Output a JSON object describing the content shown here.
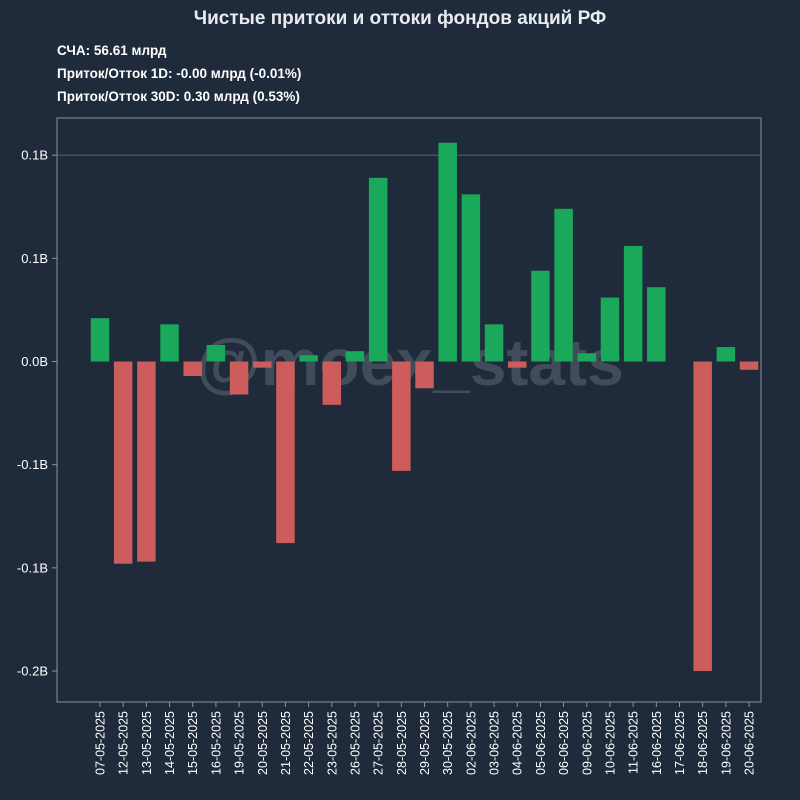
{
  "chart_data": {
    "type": "bar",
    "title": "Чистые притоки и оттоки фондов акций РФ",
    "stats": [
      {
        "label": "СЧА:",
        "value": "56.61 млрд"
      },
      {
        "label": "Приток/Отток 1D:",
        "value": "-0.00 млрд (-0.01%)"
      },
      {
        "label": "Приток/Отток 30D:",
        "value": "0.30 млрд (0.53%)"
      }
    ],
    "xlabel": "",
    "ylabel": "",
    "ylim": [
      -0.165,
      0.118
    ],
    "yticks": [
      {
        "value": 0.1,
        "label": "0.1B"
      },
      {
        "value": 0.05,
        "label": "0.1B"
      },
      {
        "value": 0.0,
        "label": "0.0B"
      },
      {
        "value": -0.05,
        "label": "-0.1B"
      },
      {
        "value": -0.1,
        "label": "-0.1B"
      },
      {
        "value": -0.15,
        "label": "-0.2B"
      }
    ],
    "grid": "horizontal line at top tick only",
    "colors": {
      "positive": "#1aa85a",
      "negative": "#cd5c5c",
      "background": "#1f2a3a",
      "axis": "#8a94a3"
    },
    "categories": [
      "07-05-2025",
      "12-05-2025",
      "13-05-2025",
      "14-05-2025",
      "15-05-2025",
      "16-05-2025",
      "19-05-2025",
      "20-05-2025",
      "21-05-2025",
      "22-05-2025",
      "23-05-2025",
      "26-05-2025",
      "27-05-2025",
      "28-05-2025",
      "29-05-2025",
      "30-05-2025",
      "02-06-2025",
      "03-06-2025",
      "04-06-2025",
      "05-06-2025",
      "06-06-2025",
      "09-06-2025",
      "10-06-2025",
      "11-06-2025",
      "16-06-2025",
      "17-06-2025",
      "18-06-2025",
      "19-06-2025",
      "20-06-2025"
    ],
    "values": [
      0.021,
      -0.098,
      -0.097,
      0.018,
      -0.007,
      0.008,
      -0.016,
      -0.003,
      -0.088,
      0.003,
      -0.021,
      0.005,
      0.089,
      -0.053,
      -0.013,
      0.106,
      0.081,
      0.018,
      -0.003,
      0.044,
      0.074,
      0.004,
      0.031,
      0.056,
      0.036,
      0.0,
      -0.15,
      0.007,
      -0.004
    ],
    "watermark": "@moex_stats"
  }
}
